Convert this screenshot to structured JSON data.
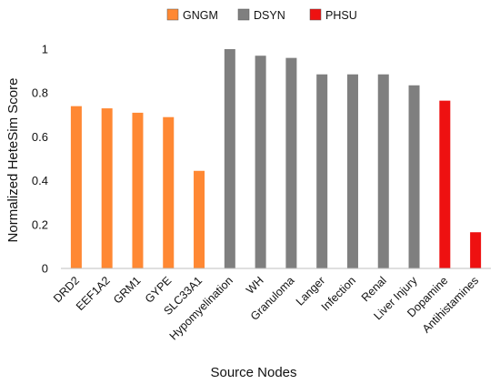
{
  "chart_data": {
    "type": "bar",
    "title": "",
    "xlabel": "Source Nodes",
    "ylabel": "Normalized HeteSim Score",
    "ylim": [
      0,
      1
    ],
    "yticks": [
      "0",
      "0.2",
      "0.4",
      "0.6",
      "0.8",
      "1"
    ],
    "grid": false,
    "legend_position": "top-center",
    "groups": [
      {
        "name": "GNGM",
        "color": "#FF8833"
      },
      {
        "name": "DSYN",
        "color": "#7F7F7F"
      },
      {
        "name": "PHSU",
        "color": "#EE1111"
      }
    ],
    "categories": [
      "DRD2",
      "EEF1A2",
      "GRM1",
      "GYPE",
      "SLC33A1",
      "Hypomyelination",
      "WH",
      "Granuloma",
      "Langer",
      "Infection",
      "Renal",
      "Liver Injury",
      "Dopamine",
      "Antihistamines"
    ],
    "values": [
      0.74,
      0.73,
      0.71,
      0.69,
      0.445,
      1.0,
      0.97,
      0.96,
      0.885,
      0.885,
      0.885,
      0.835,
      0.765,
      0.165
    ],
    "bar_group": [
      "GNGM",
      "GNGM",
      "GNGM",
      "GNGM",
      "GNGM",
      "DSYN",
      "DSYN",
      "DSYN",
      "DSYN",
      "DSYN",
      "DSYN",
      "DSYN",
      "PHSU",
      "PHSU"
    ]
  }
}
